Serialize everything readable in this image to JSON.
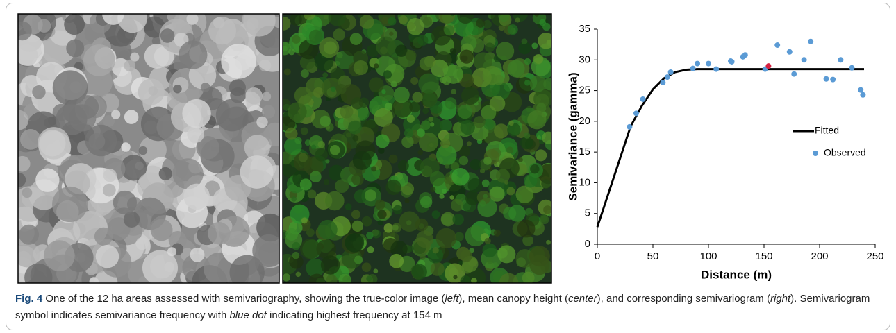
{
  "chart_data": {
    "type": "scatter-line",
    "xlabel": "Distance (m)",
    "ylabel": "Semivariance (gamma)",
    "xlim": [
      0,
      250
    ],
    "xticks": [
      0,
      50,
      100,
      150,
      200,
      250
    ],
    "ylim": [
      0,
      35
    ],
    "yticks": [
      0,
      5,
      10,
      15,
      20,
      25,
      30,
      35
    ],
    "legend": "right",
    "series": [
      {
        "name": "Fitted",
        "type": "line",
        "color": "#000000",
        "x": [
          0,
          30,
          40,
          50,
          60,
          70,
          80,
          90,
          240
        ],
        "values": [
          2.8,
          19.2,
          22.5,
          25.2,
          27.0,
          28.0,
          28.4,
          28.5,
          28.5
        ]
      },
      {
        "name": "Observed",
        "type": "scatter",
        "color": "#5b9bd5",
        "x": [
          29,
          35,
          41,
          59,
          63,
          66,
          86,
          90,
          100,
          107,
          120,
          121,
          131,
          133,
          151,
          162,
          173,
          177,
          186,
          192,
          206,
          212,
          219,
          229,
          237,
          239
        ],
        "values": [
          19.1,
          21.3,
          23.6,
          26.3,
          27.2,
          28.0,
          28.6,
          29.4,
          29.4,
          28.5,
          29.8,
          29.7,
          30.5,
          30.8,
          28.5,
          32.4,
          31.3,
          27.7,
          30.0,
          33.0,
          26.9,
          26.8,
          30.0,
          28.7,
          25.1,
          24.3
        ]
      }
    ],
    "highlight": {
      "x": 154,
      "y": 29.0,
      "color": "#d62040"
    }
  },
  "caption": {
    "label": "Fig. 4",
    "segments": [
      {
        "text": " One of the 12 ha areas assessed with semivariography, showing the true-color image ("
      },
      {
        "text": "left",
        "italic": true
      },
      {
        "text": "), mean canopy height ("
      },
      {
        "text": "center",
        "italic": true
      },
      {
        "text": "), and corresponding semivariogram ("
      },
      {
        "text": "right",
        "italic": true
      },
      {
        "text": "). Semivariogram symbol indicates semivariance frequency with "
      },
      {
        "text": "blue dot",
        "italic": true
      },
      {
        "text": " indicating highest frequency at 154 m"
      }
    ]
  }
}
